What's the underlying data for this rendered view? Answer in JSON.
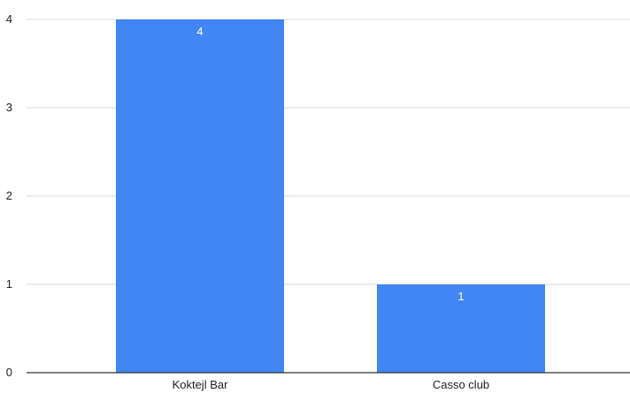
{
  "chart_data": {
    "type": "bar",
    "categories": [
      "Koktejl Bar",
      "Casso club"
    ],
    "values": [
      4,
      1
    ],
    "data_labels": [
      "4",
      "1"
    ],
    "yticks": [
      "0",
      "1",
      "2",
      "3",
      "4"
    ],
    "ylim": [
      0,
      4
    ],
    "grid": true,
    "legend": "none",
    "title": "",
    "xlabel": "",
    "ylabel": "",
    "colors": {
      "bar": "#4285f4",
      "grid": "#d9d9d9",
      "axis": "#333333",
      "text": "#222222",
      "data_label": "#ffffff"
    }
  }
}
